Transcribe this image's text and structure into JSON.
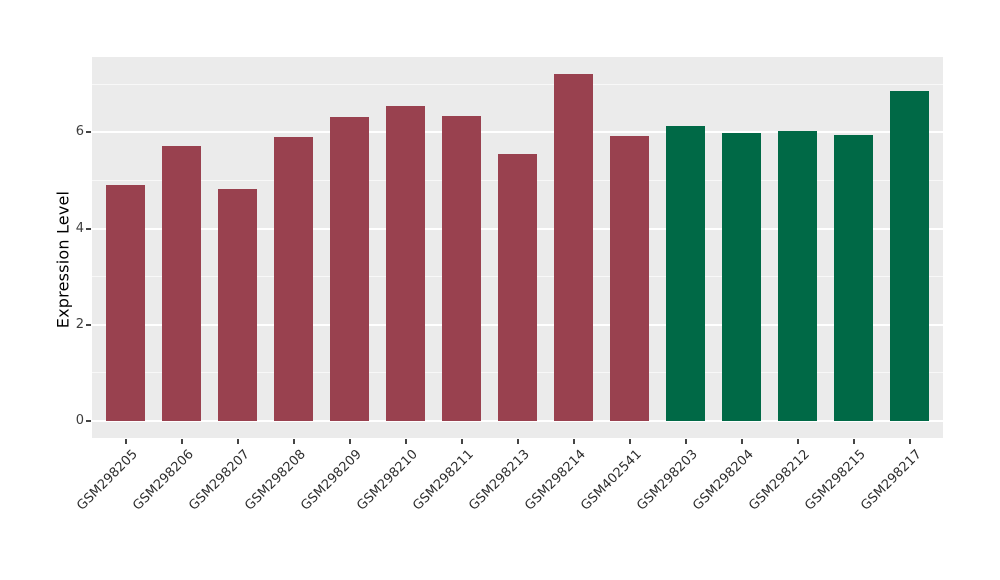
{
  "chart_data": {
    "type": "bar",
    "title": "",
    "xlabel": "",
    "ylabel": "Expression Level",
    "categories": [
      "GSM298205",
      "GSM298206",
      "GSM298207",
      "GSM298208",
      "GSM298209",
      "GSM298210",
      "GSM298211",
      "GSM298213",
      "GSM298214",
      "GSM402541",
      "GSM298203",
      "GSM298204",
      "GSM298212",
      "GSM298215",
      "GSM298217"
    ],
    "values": [
      4.9,
      5.72,
      4.83,
      5.9,
      6.32,
      6.56,
      6.34,
      5.56,
      7.21,
      5.92,
      6.13,
      5.99,
      6.03,
      5.94,
      6.86
    ],
    "bar_groups": [
      "red",
      "red",
      "red",
      "red",
      "red",
      "red",
      "red",
      "red",
      "red",
      "red",
      "green",
      "green",
      "green",
      "green",
      "green"
    ],
    "group_colors": {
      "red": "#99414F",
      "green": "#006946"
    },
    "yticks": [
      0,
      2,
      4,
      6
    ],
    "ytick_labels": [
      "0",
      "2",
      "4",
      "6"
    ],
    "minor_yticks": [
      1,
      3,
      5,
      7
    ],
    "ylim": [
      -0.36,
      7.57
    ],
    "xtick_rotation_deg": -45,
    "grid": true,
    "gridline_color": "#FFFFFF",
    "panel_bg": "#EBEBEB",
    "figure_bg": "#FFFFFF",
    "legend": "none"
  }
}
